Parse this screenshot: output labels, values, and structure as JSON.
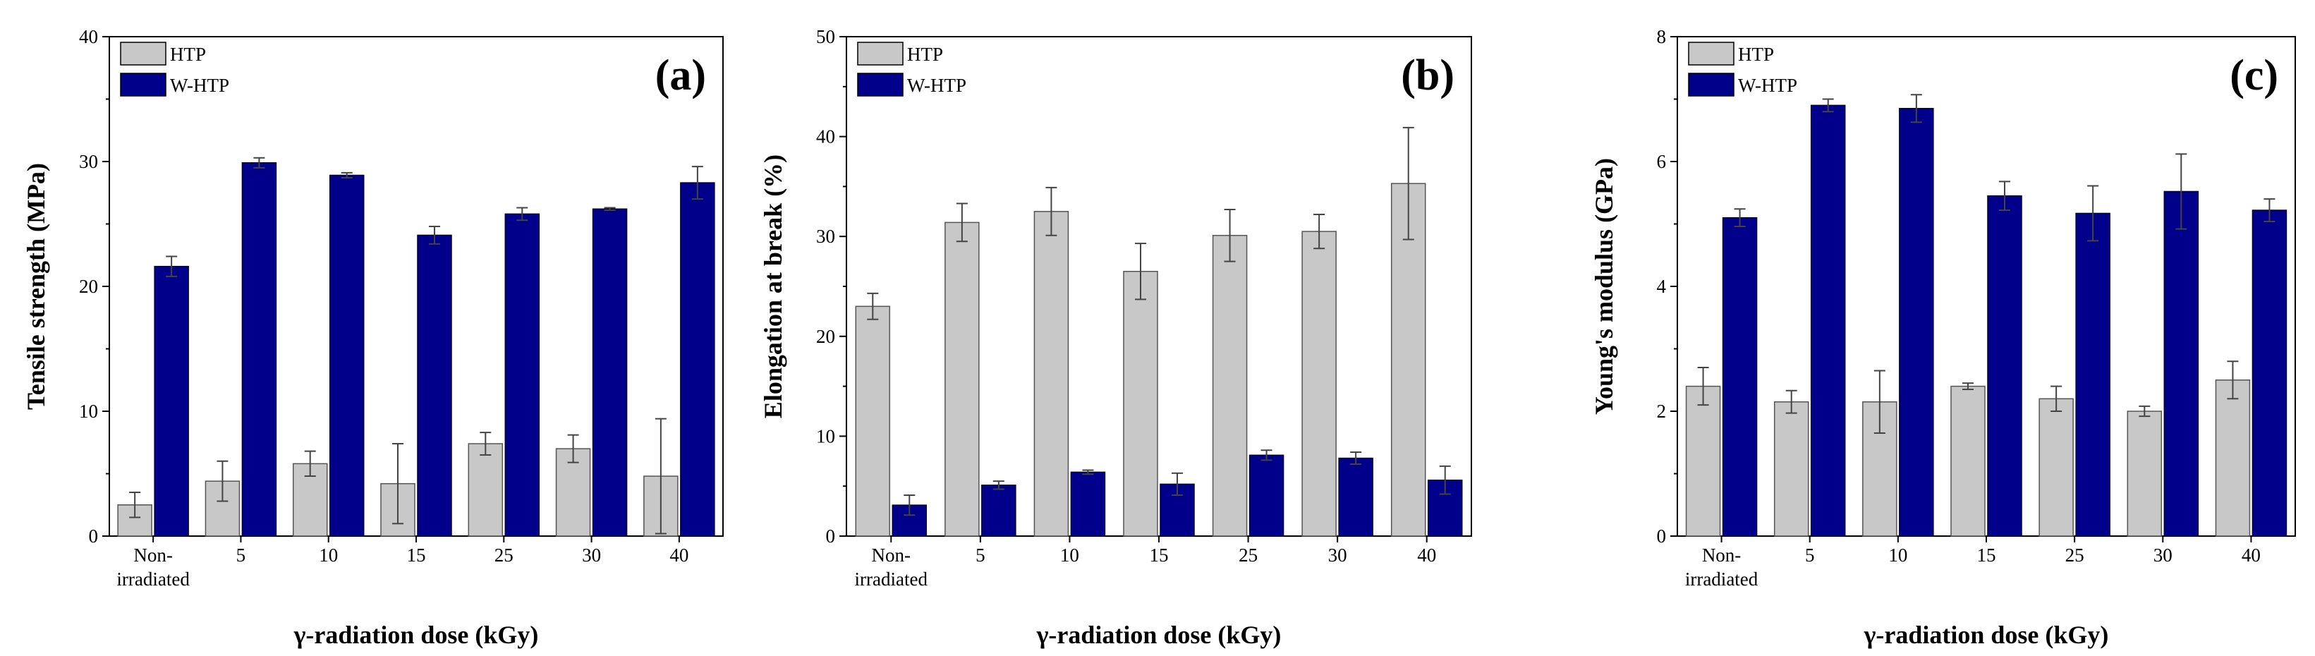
{
  "chart_data": [
    {
      "type": "bar",
      "panel_label": "(a)",
      "categories": [
        [
          "Non-",
          "irradiated"
        ],
        [
          "5"
        ],
        [
          "10"
        ],
        [
          "15"
        ],
        [
          "25"
        ],
        [
          "30"
        ],
        [
          "40"
        ]
      ],
      "xlabel": "γ-radiation dose (kGy)",
      "ylabel": "Tensile strength (MPa)",
      "ylim": [
        0,
        40
      ],
      "yticks": [
        0,
        10,
        20,
        30,
        40
      ],
      "legend_position": "top-left",
      "series": [
        {
          "name": "HTP",
          "color": "#c8c8c8",
          "values": [
            2.5,
            4.4,
            5.8,
            4.2,
            7.4,
            7.0,
            4.8
          ],
          "errors": [
            1.0,
            1.6,
            1.0,
            3.2,
            0.9,
            1.1,
            4.6
          ]
        },
        {
          "name": "W-HTP",
          "color": "#00008b",
          "values": [
            21.6,
            29.9,
            28.9,
            24.1,
            25.8,
            26.2,
            28.3
          ],
          "errors": [
            0.8,
            0.4,
            0.2,
            0.7,
            0.5,
            0.1,
            1.3
          ]
        }
      ]
    },
    {
      "type": "bar",
      "panel_label": "(b)",
      "categories": [
        [
          "Non-",
          "irradiated"
        ],
        [
          "5"
        ],
        [
          "10"
        ],
        [
          "15"
        ],
        [
          "25"
        ],
        [
          "30"
        ],
        [
          "40"
        ]
      ],
      "xlabel": "γ-radiation dose (kGy)",
      "ylabel": "Elongation at break (%)",
      "ylim": [
        0,
        50
      ],
      "yticks": [
        0,
        10,
        20,
        30,
        40,
        50
      ],
      "legend_position": "top-left",
      "series": [
        {
          "name": "HTP",
          "color": "#c8c8c8",
          "values": [
            23.0,
            31.4,
            32.5,
            26.5,
            30.1,
            30.5,
            35.3
          ],
          "errors": [
            1.3,
            1.9,
            2.4,
            2.8,
            2.6,
            1.7,
            5.6
          ]
        },
        {
          "name": "W-HTP",
          "color": "#00008b",
          "values": [
            3.1,
            5.1,
            6.4,
            5.2,
            8.1,
            7.8,
            5.6
          ],
          "errors": [
            1.0,
            0.4,
            0.2,
            1.1,
            0.5,
            0.6,
            1.4
          ]
        }
      ]
    },
    {
      "type": "bar",
      "panel_label": "(c)",
      "categories": [
        [
          "Non-",
          "irradiated"
        ],
        [
          "5"
        ],
        [
          "10"
        ],
        [
          "15"
        ],
        [
          "25"
        ],
        [
          "30"
        ],
        [
          "40"
        ]
      ],
      "xlabel": "γ-radiation dose (kGy)",
      "ylabel": "Young's modulus (GPa)",
      "ylim": [
        0,
        8
      ],
      "yticks": [
        0,
        2,
        4,
        6,
        8
      ],
      "legend_position": "top-left",
      "series": [
        {
          "name": "HTP",
          "color": "#c8c8c8",
          "values": [
            2.4,
            2.15,
            2.15,
            2.4,
            2.2,
            2.0,
            2.5
          ],
          "errors": [
            0.3,
            0.18,
            0.5,
            0.05,
            0.2,
            0.08,
            0.3
          ]
        },
        {
          "name": "W-HTP",
          "color": "#00008b",
          "values": [
            5.1,
            6.9,
            6.85,
            5.45,
            5.17,
            5.52,
            5.22
          ],
          "errors": [
            0.14,
            0.1,
            0.22,
            0.23,
            0.44,
            0.6,
            0.18
          ]
        }
      ]
    }
  ]
}
